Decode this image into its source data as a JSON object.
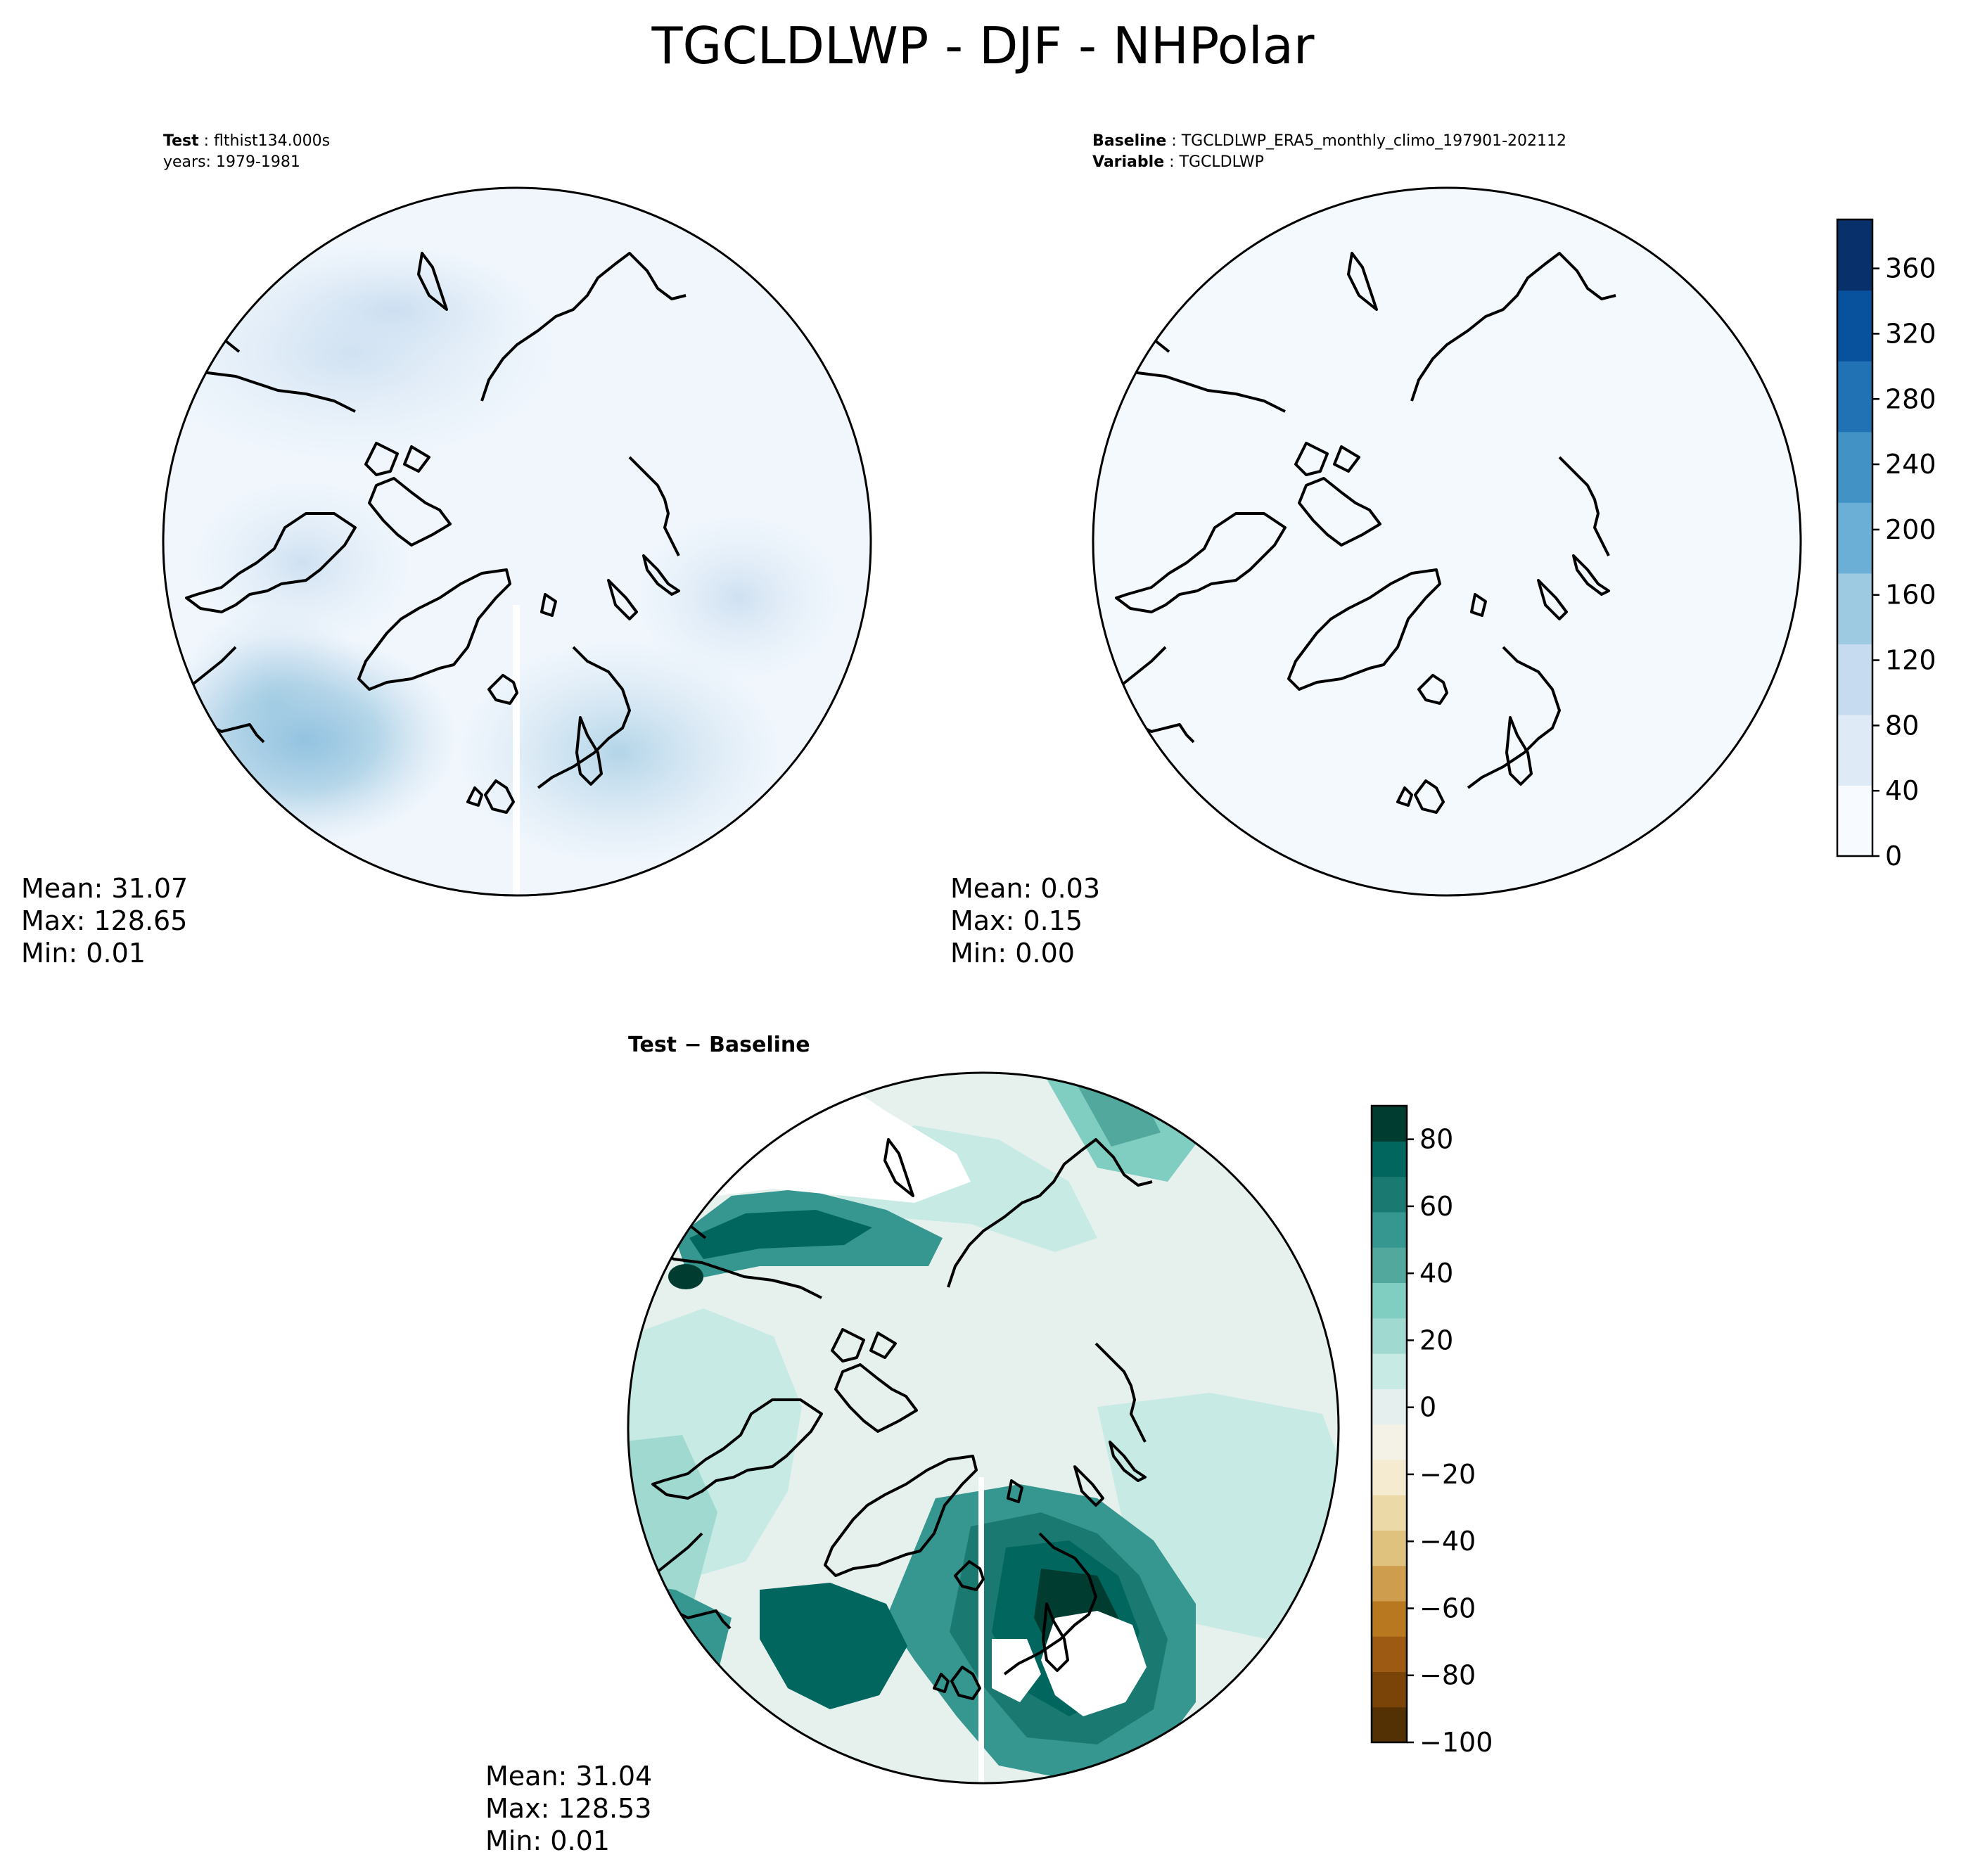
{
  "figure": {
    "title": "TGCLDLWP - DJF - NHPolar"
  },
  "panels": {
    "test": {
      "label_key": "Test",
      "label_value": "flthist134.000s",
      "years_line": "years: 1979-1981",
      "stats": {
        "mean": "Mean: 31.07",
        "max": "Max: 128.65",
        "min": "Min:  0.01"
      }
    },
    "baseline": {
      "label_key": "Baseline",
      "label_value": "TGCLDLWP_ERA5_monthly_climo_197901-202112",
      "variable_key": "Variable",
      "variable_value": "TGCLDLWP",
      "stats": {
        "mean": "Mean:  0.03",
        "max": "Max:  0.15",
        "min": "Min:  0.00"
      }
    },
    "difference": {
      "title": "Test − Baseline",
      "stats": {
        "mean": "Mean: 31.04",
        "max": "Max: 128.53",
        "min": "Min:  0.01"
      }
    }
  },
  "colorbars": {
    "top": {
      "colormap": "Blues",
      "range": [
        0,
        390
      ],
      "ticks": [
        "0",
        "40",
        "80",
        "120",
        "160",
        "200",
        "240",
        "280",
        "320",
        "360"
      ],
      "tick_values": [
        0,
        40,
        80,
        120,
        160,
        200,
        240,
        280,
        320,
        360
      ],
      "colors_low_to_high": [
        "#f7fbff",
        "#deebf7",
        "#c6dbef",
        "#9ecae1",
        "#6baed6",
        "#4292c6",
        "#2171b5",
        "#08519c",
        "#08306b"
      ]
    },
    "diff": {
      "colormap": "BrBG",
      "range": [
        -100,
        90
      ],
      "ticks": [
        "−100",
        "−80",
        "−60",
        "−40",
        "−20",
        "0",
        "20",
        "40",
        "60",
        "80"
      ],
      "tick_values": [
        -100,
        -80,
        -60,
        -40,
        -20,
        0,
        20,
        40,
        60,
        80
      ],
      "colors_low_to_high": [
        "#543005",
        "#7a4409",
        "#9c5a12",
        "#b8781f",
        "#cf9d4e",
        "#dfc27d",
        "#ecd9a8",
        "#f5ebd0",
        "#f4f1e6",
        "#e5f0ee",
        "#c7eae5",
        "#9fd9cf",
        "#80cdc1",
        "#52a89c",
        "#35978f",
        "#1a7a71",
        "#01665e",
        "#003c30"
      ]
    }
  }
}
